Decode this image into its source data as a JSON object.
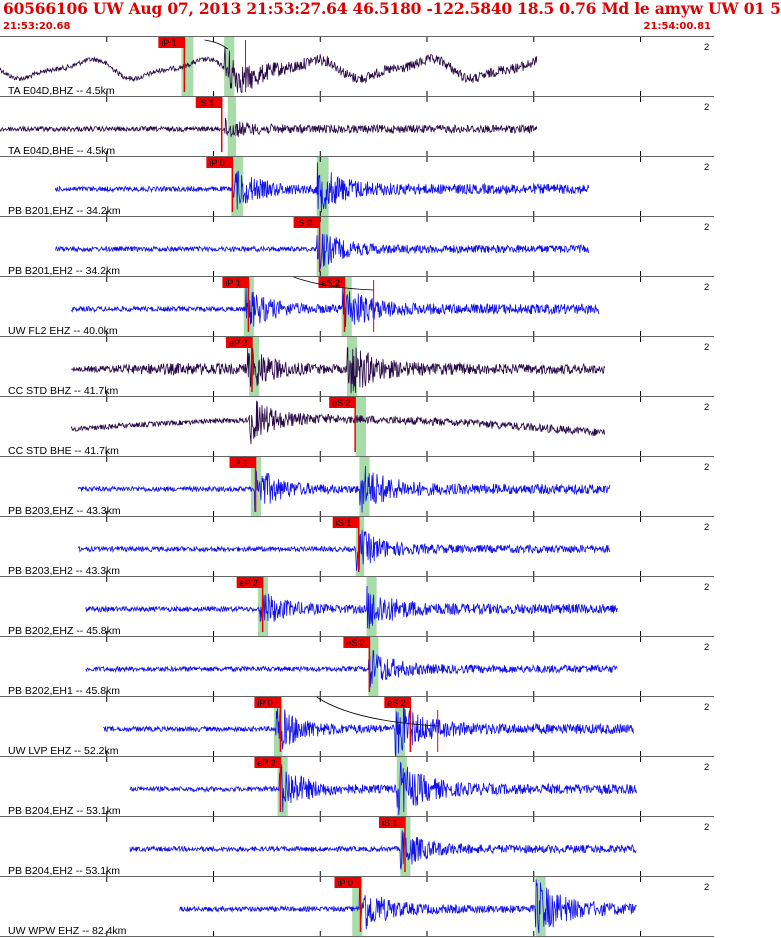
{
  "header": {
    "title": "60566106 UW Aug 07, 2013 21:53:27.64   46.5180 -122.5840 18.5 0.76 Md le amyw UW 01   5",
    "time_start": "21:53:20.68",
    "time_end": "21:54:00.81"
  },
  "colors": {
    "title_red": "#dd0000",
    "pick_red": "#ee0000",
    "trace_blue": "#1010e8",
    "trace_dark": "#2a0848",
    "window_green": "#a8dca8",
    "grid": "#000000",
    "separator": "#666666"
  },
  "chart_data": {
    "type": "seismogram",
    "time_range": [
      "21:53:20.68",
      "21:54:00.81"
    ],
    "x_unit": "s",
    "x_range": [
      0,
      40.13
    ],
    "gridlines_every_s": 6,
    "tick_label": "2",
    "traces": [
      {
        "label": "TA E04D,BHZ -- 4.5km",
        "color": "dark",
        "pick": "iP 1",
        "pick_t": 8.9,
        "window_t": [
          10.2,
          10.7,
          12.6,
          13.0
        ],
        "data_t": [
          0.0,
          30.2
        ],
        "amp": 0.7,
        "onset_t": 12.6,
        "wave": "longperiod",
        "extra_marks": "curveP"
      },
      {
        "label": "TA E04D,BHE -- 4.5km",
        "color": "dark",
        "pick": "iS 1",
        "pick_t": 11.0,
        "window_t": [
          12.8,
          13.1
        ],
        "data_t": [
          0.0,
          30.2
        ],
        "amp": 0.28,
        "onset_t": 12.6,
        "wave": "plain"
      },
      {
        "label": "PB B201,EHZ -- 34.2km",
        "color": "blue",
        "pick": "iP 0",
        "pick_t": 11.6,
        "window_t": [
          13.0,
          13.5,
          17.8,
          18.3
        ],
        "data_t": [
          3.1,
          33.1
        ],
        "amp": 0.75,
        "onset_t": 13.1,
        "wave": "plain"
      },
      {
        "label": "PB B201,EH2 -- 34.2km",
        "color": "blue",
        "pick": "iS 0",
        "pick_t": 16.5,
        "window_t": [
          17.8,
          18.3
        ],
        "data_t": [
          3.1,
          33.1
        ],
        "amp": 0.7,
        "onset_t": 17.8,
        "wave": "plain"
      },
      {
        "label": "UW FL2 EHZ -- 40.0km",
        "color": "blue",
        "pick": "iP 1",
        "pick_t": 12.5,
        "pick2": "eS 2",
        "pick2_t": 17.9,
        "window_t": [
          13.7,
          14.1,
          19.2,
          19.6
        ],
        "data_t": [
          4.0,
          33.7
        ],
        "amp": 0.75,
        "onset_t": 13.8,
        "wave": "plain",
        "extra_marks": "curveS"
      },
      {
        "label": "CC STD BHZ -- 41.7km",
        "color": "dark",
        "pick": "eP 2",
        "pick_t": 12.7,
        "window_t": [
          14.0,
          14.4,
          19.5,
          19.9
        ],
        "data_t": [
          4.0,
          34.0
        ],
        "amp": 0.9,
        "onset_t": 13.9,
        "wave": "bulge"
      },
      {
        "label": "CC STD BHE -- 41.7km",
        "color": "dark",
        "pick": "eS 2",
        "pick_t": 18.5,
        "window_t": [
          20.0,
          20.4
        ],
        "data_t": [
          4.0,
          34.0
        ],
        "amp": 0.8,
        "onset_t": 14.0,
        "wave": "dip"
      },
      {
        "label": "PB B203,EHZ -- 43.3km",
        "color": "blue",
        "pick": "iP 1",
        "pick_t": 12.9,
        "window_t": [
          14.1,
          14.5,
          20.2,
          20.6
        ],
        "data_t": [
          4.4,
          34.3
        ],
        "amp": 0.8,
        "onset_t": 14.3,
        "wave": "plain"
      },
      {
        "label": "PB B203,EH2 -- 43.3km",
        "color": "blue",
        "pick": "iS 1",
        "pick_t": 18.7,
        "window_t": [
          20.0,
          20.3
        ],
        "data_t": [
          4.4,
          34.3
        ],
        "amp": 0.75,
        "onset_t": 20.0,
        "wave": "plain"
      },
      {
        "label": "PB B202,EHZ -- 45.8km",
        "color": "blue",
        "pick": "eP 2",
        "pick_t": 13.3,
        "window_t": [
          14.5,
          14.9,
          20.6,
          21.0
        ],
        "data_t": [
          4.8,
          34.7
        ],
        "amp": 0.65,
        "onset_t": 14.6,
        "wave": "plain"
      },
      {
        "label": "PB B202,EH1 -- 45.8km",
        "color": "blue",
        "pick": "eS 2",
        "pick_t": 19.3,
        "window_t": [
          20.7,
          21.1
        ],
        "data_t": [
          4.8,
          34.7
        ],
        "amp": 0.7,
        "onset_t": 20.7,
        "wave": "plain"
      },
      {
        "label": "UW LVP EHZ -- 52.2km",
        "color": "blue",
        "pick": "iP 0",
        "pick_t": 14.3,
        "pick2": "eS 2",
        "pick2_t": 21.6,
        "window_t": [
          15.4,
          15.7,
          22.2,
          22.6
        ],
        "data_t": [
          5.8,
          35.6
        ],
        "amp": 0.85,
        "onset_t": 15.5,
        "wave": "plain",
        "extra_marks": "curveS2"
      },
      {
        "label": "PB B204,EHZ -- 53.1km",
        "color": "blue",
        "pick": "eP 2",
        "pick_t": 14.3,
        "window_t": [
          15.6,
          16.0,
          22.3,
          22.7
        ],
        "data_t": [
          7.3,
          35.8
        ],
        "amp": 0.9,
        "onset_t": 15.7,
        "wave": "plain"
      },
      {
        "label": "PB B204,EH2 -- 53.1km",
        "color": "blue",
        "pick": "iS 1",
        "pick_t": 21.3,
        "window_t": [
          22.5,
          22.9
        ],
        "data_t": [
          7.3,
          35.8
        ],
        "amp": 0.7,
        "onset_t": 22.5,
        "wave": "plain"
      },
      {
        "label": "UW WPW EHZ -- 82.4km",
        "color": "blue",
        "pick": "iP 0",
        "pick_t": 18.8,
        "window_t": [
          19.8,
          20.2,
          30.1,
          30.5
        ],
        "data_t": [
          10.1,
          35.8
        ],
        "amp": 0.9,
        "onset_t": 20.2,
        "wave": "plain"
      }
    ]
  }
}
